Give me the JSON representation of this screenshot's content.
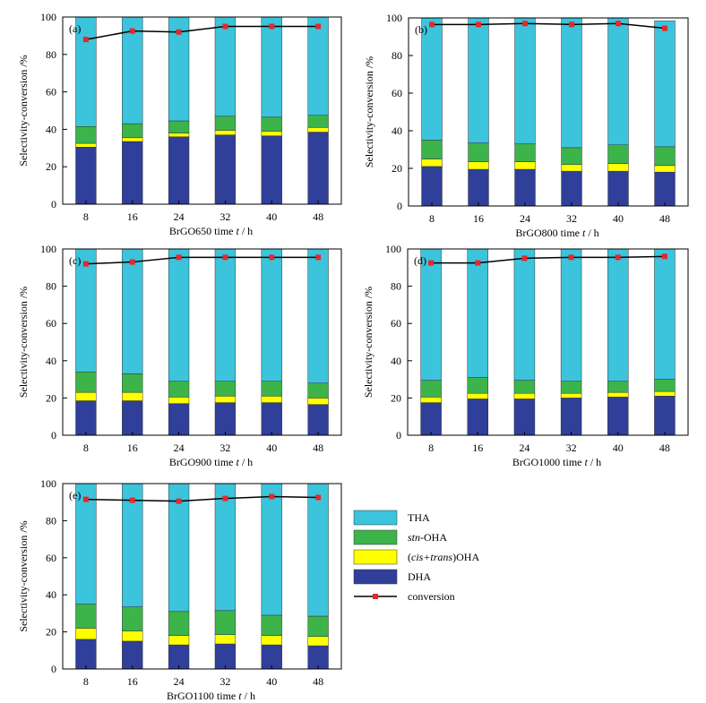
{
  "colors": {
    "THA": "#3cc4dc",
    "stn_OHA": "#3cb44a",
    "cis_trans_OHA": "#ffff00",
    "DHA": "#2f3f9a",
    "conversion_line": "#000000",
    "conversion_marker": "#e8262a"
  },
  "legend": {
    "entries": [
      {
        "key": "THA",
        "label": "THA",
        "swatch": "THA"
      },
      {
        "key": "stn",
        "label_italic": "stn",
        "label_rest": "-OHA",
        "swatch": "stn_OHA"
      },
      {
        "key": "cistrans",
        "label_prefix": "(",
        "label_italic": "cis+trans",
        "label_rest": ")OHA",
        "swatch": "cis_trans_OHA"
      },
      {
        "key": "DHA",
        "label": "DHA",
        "swatch": "DHA"
      },
      {
        "key": "conversion",
        "label": "conversion",
        "swatch": "line"
      }
    ]
  },
  "chart_data": [
    {
      "type": "bar",
      "panel_label": "(a)",
      "xlabel": "BrGO650 time",
      "xunit_italic": "t",
      "xunit_rest": " / h",
      "ylabel": "Selectivity-conversion  /%",
      "ylim": [
        0,
        100
      ],
      "yticks": [
        0,
        20,
        40,
        60,
        80,
        100
      ],
      "categories": [
        "8",
        "16",
        "24",
        "32",
        "40",
        "48"
      ],
      "stacked": true,
      "series": [
        {
          "name": "DHA",
          "values": [
            30.5,
            33.5,
            36,
            37,
            36.5,
            38.5
          ]
        },
        {
          "name": "(cis+trans)OHA",
          "values": [
            2,
            2,
            2,
            2.5,
            2.5,
            2.5
          ]
        },
        {
          "name": "stn-OHA",
          "values": [
            9,
            7.5,
            6.5,
            7.5,
            7.5,
            6.5
          ]
        },
        {
          "name": "THA",
          "values": [
            58.5,
            57,
            55.5,
            53,
            53.5,
            52.5
          ]
        }
      ],
      "conversion": [
        88,
        92.5,
        92,
        95,
        95,
        95
      ]
    },
    {
      "type": "bar",
      "panel_label": "(b)",
      "xlabel": "BrGO800 time",
      "xunit_italic": "t",
      "xunit_rest": " / h",
      "ylabel": "Selectivity-conversion  /%",
      "ylim": [
        0,
        100
      ],
      "yticks": [
        0,
        20,
        40,
        60,
        80,
        100
      ],
      "categories": [
        "8",
        "16",
        "24",
        "32",
        "40",
        "48"
      ],
      "stacked": true,
      "series": [
        {
          "name": "DHA",
          "values": [
            21,
            19.5,
            19.5,
            18.5,
            18.5,
            18
          ]
        },
        {
          "name": "(cis+trans)OHA",
          "values": [
            4,
            4,
            4,
            3.5,
            4,
            3.5
          ]
        },
        {
          "name": "stn-OHA",
          "values": [
            10,
            10,
            9.5,
            9,
            10,
            10
          ]
        },
        {
          "name": "THA",
          "values": [
            65,
            66.5,
            67,
            69,
            67.5,
            67
          ]
        }
      ],
      "conversion": [
        96.5,
        96.5,
        97,
        96.5,
        97,
        94.5
      ]
    },
    {
      "type": "bar",
      "panel_label": "(c)",
      "xlabel": "BrGO900 time",
      "xunit_italic": "t",
      "xunit_rest": " / h",
      "ylabel": "Selectivity-conversion  /%",
      "ylim": [
        0,
        100
      ],
      "yticks": [
        0,
        20,
        40,
        60,
        80,
        100
      ],
      "categories": [
        "8",
        "16",
        "24",
        "32",
        "40",
        "48"
      ],
      "stacked": true,
      "series": [
        {
          "name": "DHA",
          "values": [
            18.5,
            18.5,
            17,
            17.5,
            17.5,
            16.5
          ]
        },
        {
          "name": "(cis+trans)OHA",
          "values": [
            4.5,
            4.5,
            3.5,
            3.5,
            3.5,
            3.5
          ]
        },
        {
          "name": "stn-OHA",
          "values": [
            11,
            10,
            8.5,
            8,
            8,
            8
          ]
        },
        {
          "name": "THA",
          "values": [
            66,
            67,
            71,
            71,
            71,
            72
          ]
        }
      ],
      "conversion": [
        92,
        93,
        95.5,
        95.5,
        95.5,
        95.5
      ]
    },
    {
      "type": "bar",
      "panel_label": "(d)",
      "xlabel": "BrGO1000 time",
      "xunit_italic": "t",
      "xunit_rest": " / h",
      "ylabel": "Selectivity-conversion  /%",
      "ylim": [
        0,
        100
      ],
      "yticks": [
        0,
        20,
        40,
        60,
        80,
        100
      ],
      "categories": [
        "8",
        "16",
        "24",
        "32",
        "40",
        "48"
      ],
      "stacked": true,
      "series": [
        {
          "name": "DHA",
          "values": [
            17.5,
            19.5,
            19.5,
            20,
            20.5,
            21
          ]
        },
        {
          "name": "(cis+trans)OHA",
          "values": [
            3,
            3,
            3,
            2.5,
            2.5,
            2.5
          ]
        },
        {
          "name": "stn-OHA",
          "values": [
            9,
            8.5,
            7,
            6.5,
            6,
            6.5
          ]
        },
        {
          "name": "THA",
          "values": [
            70.5,
            69,
            70.5,
            71,
            71,
            70
          ]
        }
      ],
      "conversion": [
        92.5,
        92.5,
        95,
        95.5,
        95.5,
        96
      ]
    },
    {
      "type": "bar",
      "panel_label": "(e)",
      "xlabel": "BrGO1100 time",
      "xunit_italic": "t",
      "xunit_rest": " / h",
      "ylabel": "Selectivity-conversion  /%",
      "ylim": [
        0,
        100
      ],
      "yticks": [
        0,
        20,
        40,
        60,
        80,
        100
      ],
      "categories": [
        "8",
        "16",
        "24",
        "32",
        "40",
        "48"
      ],
      "stacked": true,
      "series": [
        {
          "name": "DHA",
          "values": [
            16,
            15,
            13,
            13.5,
            13,
            12.5
          ]
        },
        {
          "name": "(cis+trans)OHA",
          "values": [
            6,
            5.5,
            5,
            5,
            5,
            5
          ]
        },
        {
          "name": "stn-OHA",
          "values": [
            13,
            13,
            13,
            13,
            11,
            11
          ]
        },
        {
          "name": "THA",
          "values": [
            65,
            66.5,
            69,
            68.5,
            71,
            71.5
          ]
        }
      ],
      "conversion": [
        91.5,
        91,
        90.5,
        92,
        93,
        92.5
      ]
    }
  ]
}
